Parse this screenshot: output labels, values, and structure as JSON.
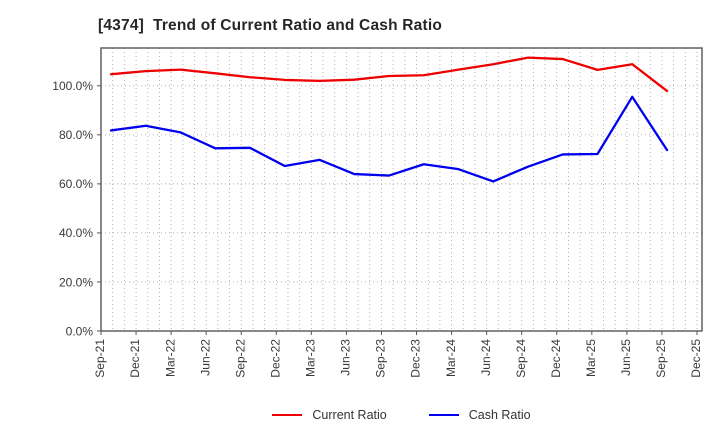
{
  "title": "[4374]  Trend of Current Ratio and Cash Ratio",
  "chart_data": {
    "type": "line",
    "title": "[4374]  Trend of Current Ratio and Cash Ratio",
    "x_tick_labels": [
      "Sep-21",
      "Dec-21",
      "Mar-22",
      "Jun-22",
      "Sep-22",
      "Dec-22",
      "Mar-23",
      "Jun-23",
      "Sep-23",
      "Dec-23",
      "Mar-24",
      "Jun-24",
      "Sep-24",
      "Dec-24",
      "Mar-25",
      "Jun-25",
      "Sep-25",
      "Dec-25"
    ],
    "y_tick_labels": [
      "0.0%",
      "20.0%",
      "40.0%",
      "60.0%",
      "80.0%",
      "100.0%"
    ],
    "y_tick_values": [
      0,
      20,
      40,
      60,
      80,
      100
    ],
    "ylim": [
      0,
      115.4
    ],
    "grid": "dotted",
    "minor_x_grid": "monthly",
    "legend_position": "bottom-center",
    "series": [
      {
        "name": "Current Ratio",
        "color": "#ee0000",
        "values": [
          104.7,
          106.0,
          106.6,
          105.1,
          103.5,
          102.4,
          102.0,
          102.5,
          104.0,
          104.3,
          106.6,
          108.8,
          111.5,
          110.9,
          106.5,
          108.8,
          97.9,
          null
        ]
      },
      {
        "name": "Cash Ratio",
        "color": "#0000ee",
        "values": [
          81.8,
          83.7,
          81.0,
          74.5,
          74.7,
          67.3,
          69.8,
          64.0,
          63.4,
          68.0,
          66.0,
          61.0,
          67.0,
          72.0,
          72.2,
          95.5,
          73.8,
          null
        ]
      }
    ]
  }
}
